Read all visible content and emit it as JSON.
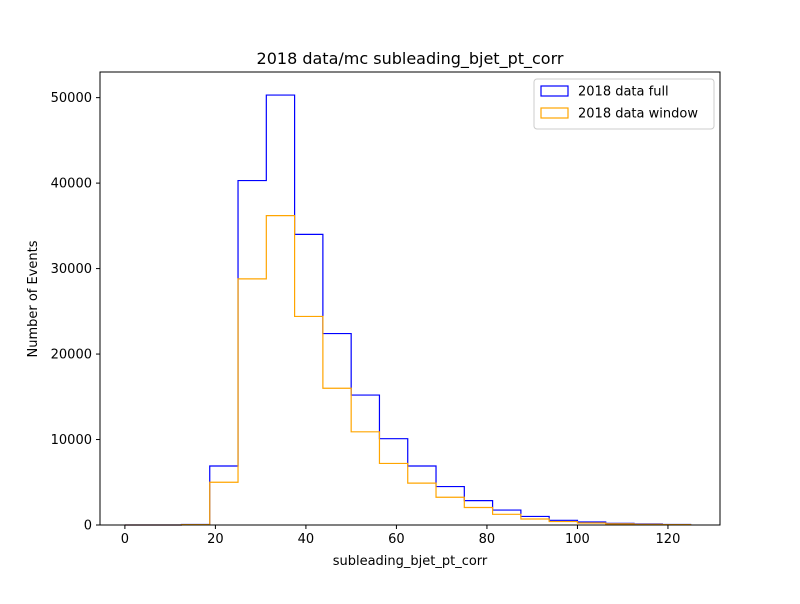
{
  "chart_data": {
    "type": "histogram",
    "title": "2018 data/mc subleading_bjet_pt_corr",
    "xlabel": "subleading_bjet_pt_corr",
    "ylabel": "Number of Events",
    "xlim": [
      -5.5,
      131.5
    ],
    "ylim": [
      0,
      53000
    ],
    "x_ticks": [
      0,
      20,
      40,
      60,
      80,
      100,
      120
    ],
    "y_ticks": [
      0,
      10000,
      20000,
      30000,
      40000,
      50000
    ],
    "x_tick_labels": [
      "0",
      "20",
      "40",
      "60",
      "80",
      "100",
      "120"
    ],
    "y_tick_labels": [
      "0",
      "10000",
      "20000",
      "30000",
      "40000",
      "50000"
    ],
    "bin_edges": [
      0,
      6.25,
      12.5,
      18.75,
      25,
      31.25,
      37.5,
      43.75,
      50,
      56.25,
      62.5,
      68.75,
      75,
      81.25,
      87.5,
      93.75,
      100,
      106.25,
      112.5,
      118.75,
      125
    ],
    "series": [
      {
        "name": "2018 data full",
        "color": "#0000ff",
        "values": [
          0,
          0,
          60,
          6900,
          40300,
          50300,
          34000,
          22400,
          15200,
          10100,
          6900,
          4500,
          2850,
          1750,
          1000,
          550,
          350,
          200,
          120,
          60
        ]
      },
      {
        "name": "2018 data window",
        "color": "#ffa500",
        "values": [
          0,
          0,
          40,
          5000,
          28800,
          36200,
          24400,
          16000,
          10900,
          7200,
          4900,
          3250,
          2050,
          1250,
          700,
          400,
          230,
          130,
          80,
          40
        ]
      }
    ],
    "legend_position": "top-right",
    "grid": false
  }
}
